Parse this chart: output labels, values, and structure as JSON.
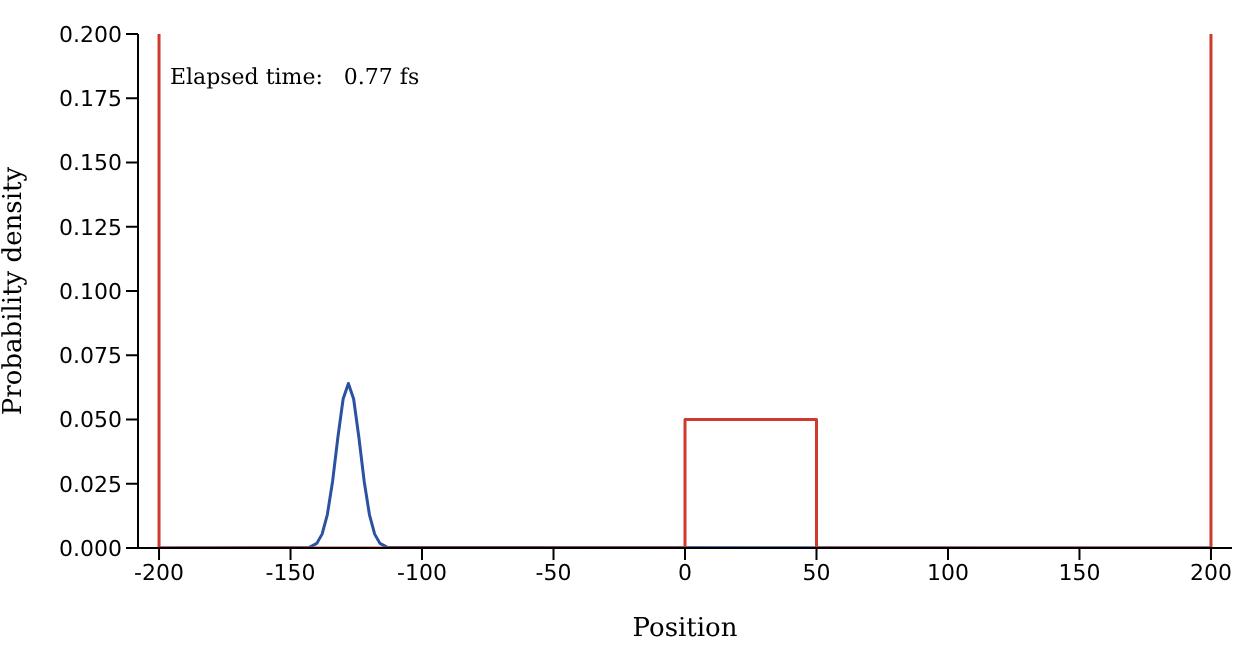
{
  "chart_data": {
    "type": "line",
    "xlabel": "Position",
    "ylabel": "Probability density",
    "annotations": [
      "Elapsed time:   0.77 fs"
    ],
    "xlim": [
      -208,
      208
    ],
    "xticks": [
      -200,
      -150,
      -100,
      -50,
      0,
      50,
      100,
      150,
      200
    ],
    "ylim": [
      0,
      0.2
    ],
    "yticks": [
      {
        "value": 0,
        "label": "0.000"
      },
      {
        "value": 0.025,
        "label": "0.025"
      },
      {
        "value": 0.05,
        "label": "0.050"
      },
      {
        "value": 0.075,
        "label": "0.075"
      },
      {
        "value": 0.1,
        "label": "0.100"
      },
      {
        "value": 0.125,
        "label": "0.125"
      },
      {
        "value": 0.15,
        "label": "0.150"
      },
      {
        "value": 0.175,
        "label": "0.175"
      },
      {
        "value": 0.2,
        "label": "0.200"
      }
    ],
    "grid": false,
    "legend": false,
    "marker": "none",
    "line_style": "solid",
    "series": [
      {
        "color": "#2a52a0",
        "x": [
          -200,
          -143,
          -140,
          -138,
          -136,
          -134,
          -132,
          -130,
          -128,
          -126,
          -124,
          -122,
          -120,
          -118,
          -116,
          -113,
          200
        ],
        "values": [
          0,
          0.0002,
          0.0018,
          0.0054,
          0.013,
          0.026,
          0.043,
          0.058,
          0.064,
          0.058,
          0.043,
          0.026,
          0.013,
          0.0054,
          0.0018,
          0.0002,
          0
        ]
      },
      {
        "color": "#d03a2e",
        "x": [
          -200,
          -200,
          0,
          0,
          50,
          50,
          200,
          200
        ],
        "values": [
          0.2,
          0,
          0,
          0.05,
          0.05,
          0,
          0,
          0.2
        ]
      }
    ]
  }
}
